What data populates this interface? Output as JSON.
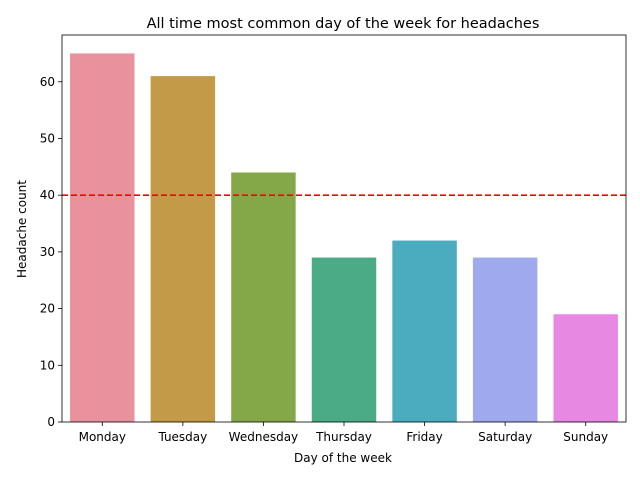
{
  "chart_data": {
    "type": "bar",
    "title": "All time most common day of the week for headaches",
    "xlabel": "Day of the week",
    "ylabel": "Headache count",
    "categories": [
      "Monday",
      "Tuesday",
      "Wednesday",
      "Thursday",
      "Friday",
      "Saturday",
      "Sunday"
    ],
    "values": [
      65,
      61,
      44,
      29,
      32,
      29,
      19
    ],
    "colors": [
      "#e9919d",
      "#c39a48",
      "#84a848",
      "#4aab86",
      "#4aacbe",
      "#9fa9ee",
      "#e788e2"
    ],
    "ylim": [
      0,
      68.25
    ],
    "yticks": [
      0,
      10,
      20,
      30,
      40,
      50,
      60
    ],
    "reference_line": {
      "value": 40,
      "color": "#ff0000",
      "style": "dashed"
    },
    "grid": false,
    "legend": "none"
  }
}
